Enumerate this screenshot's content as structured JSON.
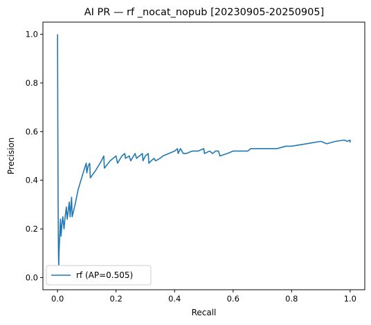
{
  "chart_data": {
    "type": "line",
    "title": "AI PR — rf _nocat_nopub [20230905-20250905]",
    "xlabel": "Recall",
    "ylabel": "Precision",
    "xlim": [
      -0.05,
      1.05
    ],
    "ylim": [
      -0.05,
      1.05
    ],
    "xticks": [
      "0.0",
      "0.2",
      "0.4",
      "0.6",
      "0.8",
      "1.0"
    ],
    "yticks": [
      "0.0",
      "0.2",
      "0.4",
      "0.6",
      "0.8",
      "1.0"
    ],
    "grid": false,
    "legend_position": "lower-left",
    "series": [
      {
        "name": "rf (AP=0.505)",
        "color": "#1f77b4",
        "points": [
          [
            0.0,
            1.0
          ],
          [
            0.001,
            0.6
          ],
          [
            0.002,
            0.3
          ],
          [
            0.003,
            0.12
          ],
          [
            0.004,
            0.04
          ],
          [
            0.005,
            0.1
          ],
          [
            0.007,
            0.16
          ],
          [
            0.01,
            0.24
          ],
          [
            0.012,
            0.17
          ],
          [
            0.015,
            0.22
          ],
          [
            0.018,
            0.25
          ],
          [
            0.022,
            0.2
          ],
          [
            0.026,
            0.25
          ],
          [
            0.03,
            0.29
          ],
          [
            0.033,
            0.24
          ],
          [
            0.037,
            0.28
          ],
          [
            0.04,
            0.31
          ],
          [
            0.043,
            0.25
          ],
          [
            0.048,
            0.33
          ],
          [
            0.05,
            0.25
          ],
          [
            0.06,
            0.3
          ],
          [
            0.07,
            0.36
          ],
          [
            0.08,
            0.4
          ],
          [
            0.09,
            0.44
          ],
          [
            0.098,
            0.47
          ],
          [
            0.1,
            0.43
          ],
          [
            0.105,
            0.46
          ],
          [
            0.11,
            0.47
          ],
          [
            0.112,
            0.41
          ],
          [
            0.13,
            0.44
          ],
          [
            0.15,
            0.48
          ],
          [
            0.158,
            0.5
          ],
          [
            0.16,
            0.45
          ],
          [
            0.18,
            0.48
          ],
          [
            0.2,
            0.5
          ],
          [
            0.205,
            0.47
          ],
          [
            0.22,
            0.5
          ],
          [
            0.23,
            0.51
          ],
          [
            0.232,
            0.49
          ],
          [
            0.245,
            0.5
          ],
          [
            0.25,
            0.48
          ],
          [
            0.265,
            0.51
          ],
          [
            0.27,
            0.49
          ],
          [
            0.28,
            0.5
          ],
          [
            0.29,
            0.51
          ],
          [
            0.292,
            0.48
          ],
          [
            0.3,
            0.5
          ],
          [
            0.31,
            0.51
          ],
          [
            0.312,
            0.47
          ],
          [
            0.32,
            0.48
          ],
          [
            0.33,
            0.49
          ],
          [
            0.335,
            0.48
          ],
          [
            0.35,
            0.49
          ],
          [
            0.36,
            0.5
          ],
          [
            0.38,
            0.51
          ],
          [
            0.4,
            0.52
          ],
          [
            0.41,
            0.53
          ],
          [
            0.412,
            0.51
          ],
          [
            0.42,
            0.53
          ],
          [
            0.43,
            0.51
          ],
          [
            0.44,
            0.51
          ],
          [
            0.46,
            0.52
          ],
          [
            0.48,
            0.52
          ],
          [
            0.5,
            0.53
          ],
          [
            0.502,
            0.51
          ],
          [
            0.52,
            0.52
          ],
          [
            0.53,
            0.51
          ],
          [
            0.54,
            0.52
          ],
          [
            0.55,
            0.52
          ],
          [
            0.555,
            0.5
          ],
          [
            0.58,
            0.51
          ],
          [
            0.6,
            0.52
          ],
          [
            0.62,
            0.52
          ],
          [
            0.65,
            0.52
          ],
          [
            0.66,
            0.53
          ],
          [
            0.7,
            0.53
          ],
          [
            0.72,
            0.53
          ],
          [
            0.75,
            0.53
          ],
          [
            0.78,
            0.54
          ],
          [
            0.8,
            0.54
          ],
          [
            0.85,
            0.55
          ],
          [
            0.9,
            0.56
          ],
          [
            0.92,
            0.55
          ],
          [
            0.95,
            0.56
          ],
          [
            0.98,
            0.565
          ],
          [
            0.99,
            0.56
          ],
          [
            1.0,
            0.565
          ],
          [
            1.0,
            0.555
          ]
        ]
      }
    ]
  }
}
